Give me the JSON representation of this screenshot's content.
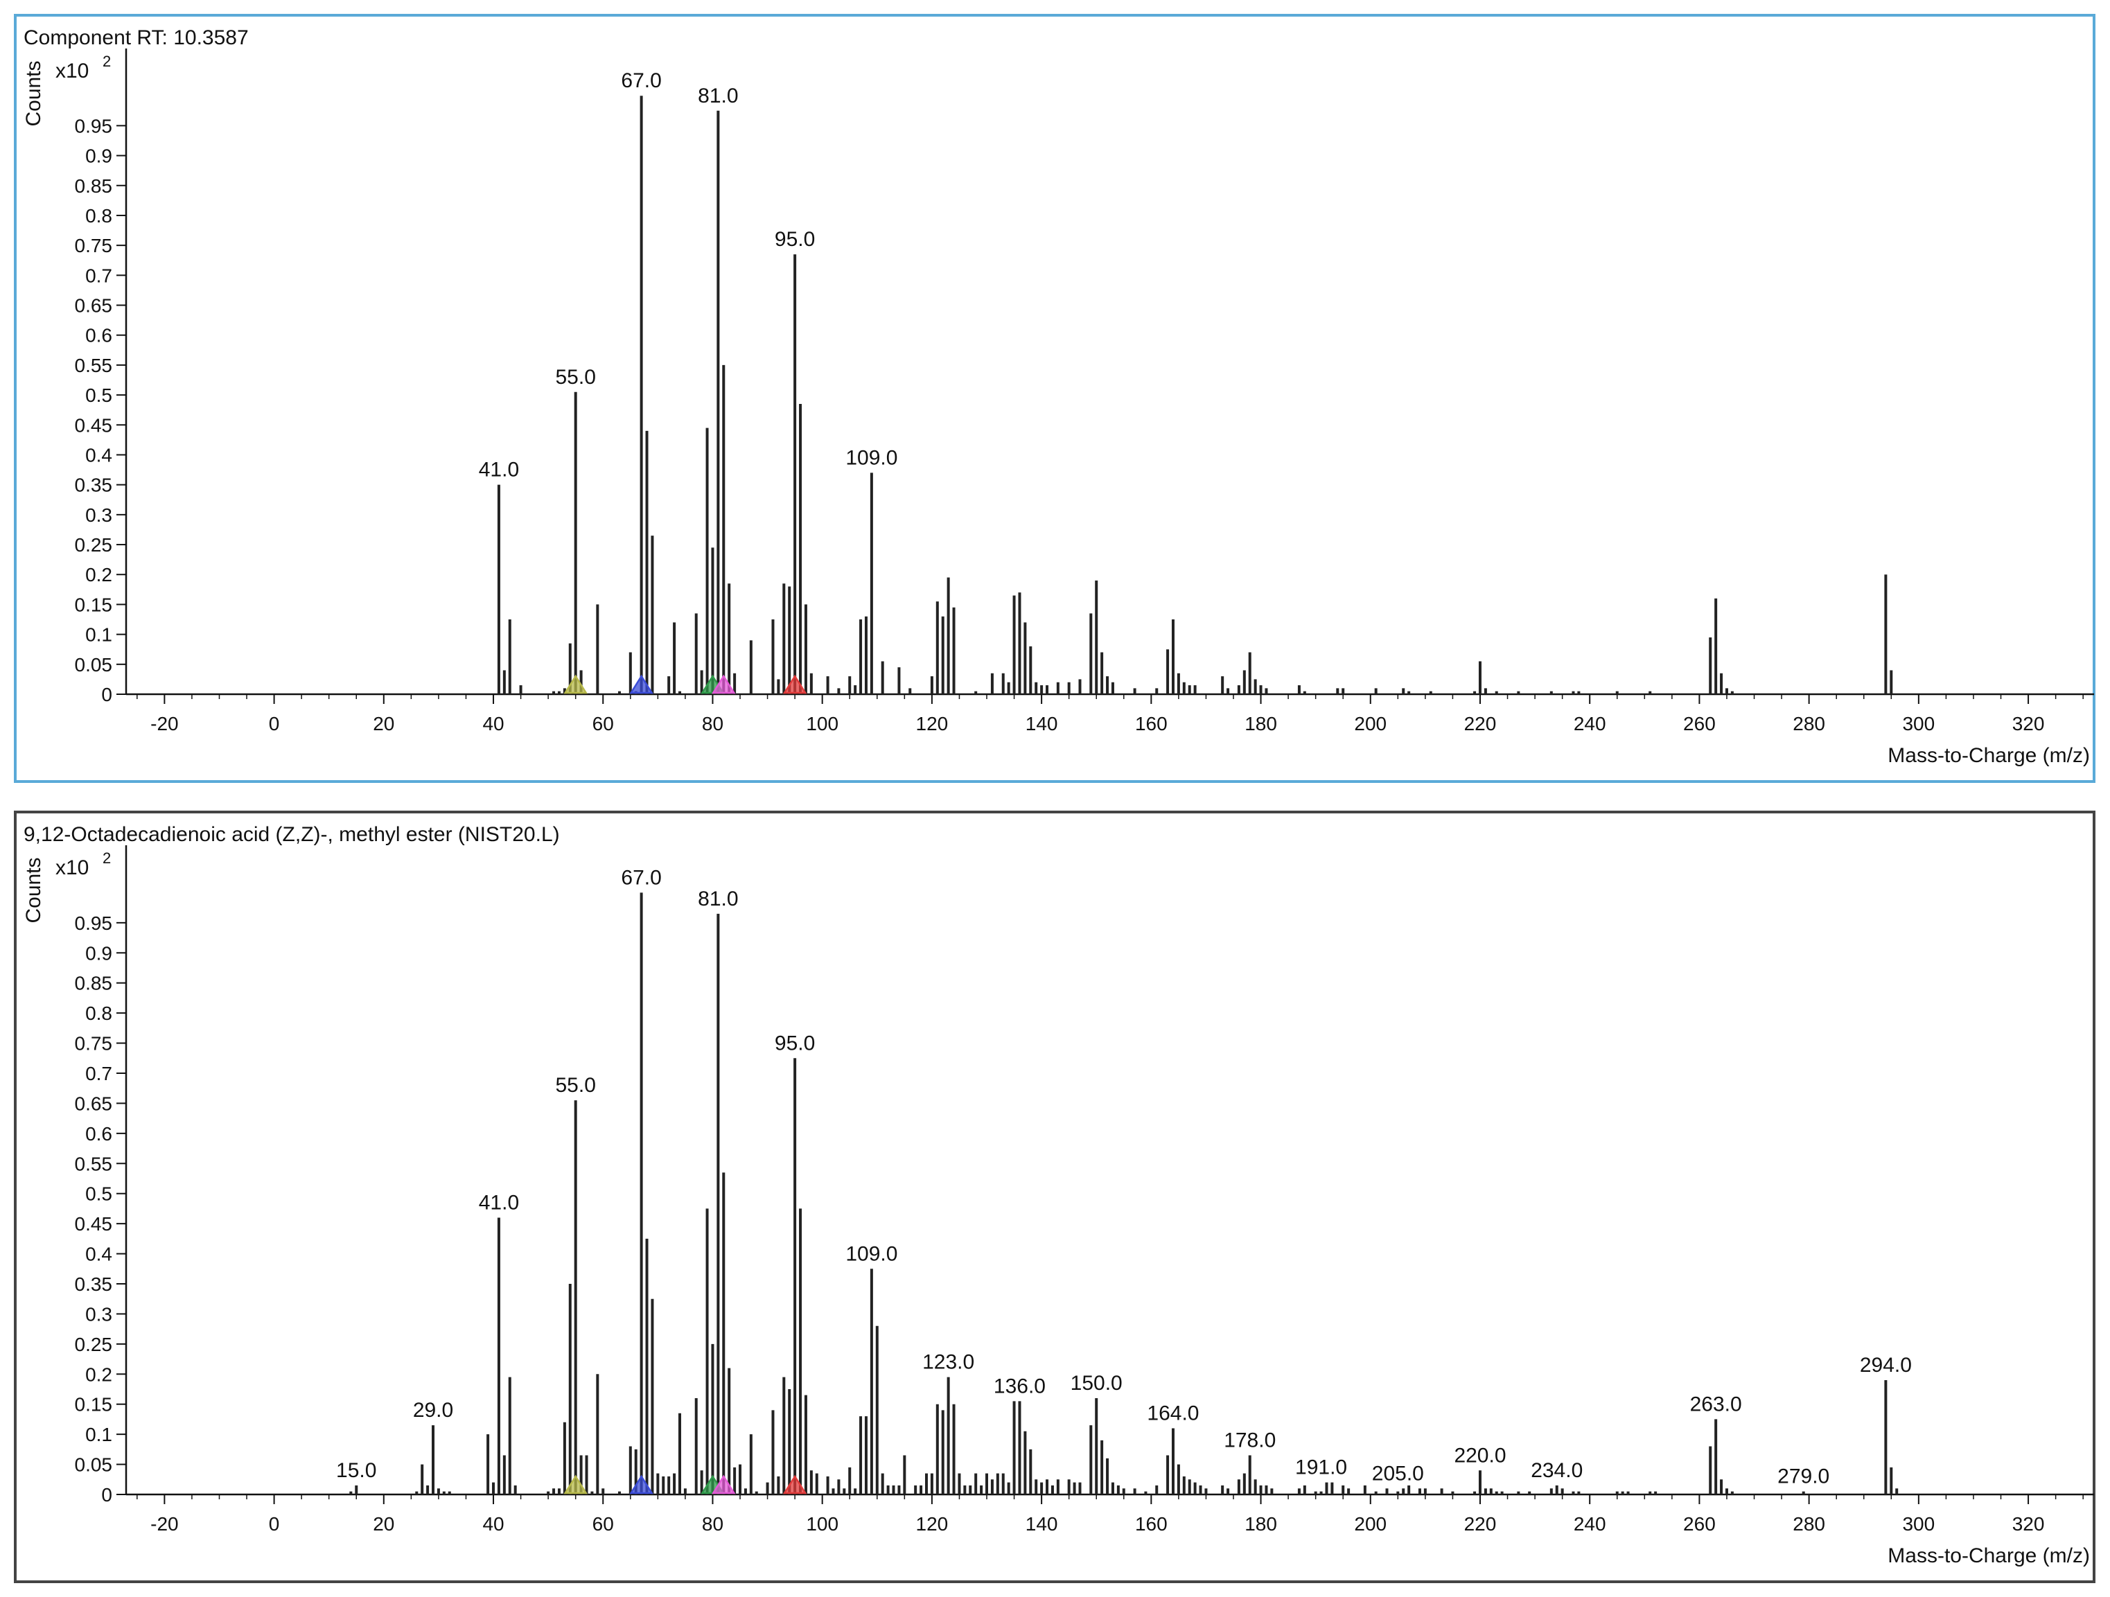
{
  "chart_data": [
    {
      "type": "bar",
      "title": "Component RT: 10.3587",
      "ylabel": "Counts",
      "y_multiplier": "x10",
      "y_multiplier_exp": "2",
      "xlabel": "Mass-to-Charge (m/z)",
      "xlim": [
        -27,
        332
      ],
      "ylim": [
        0,
        1.05
      ],
      "x_ticks": [
        -20,
        0,
        20,
        40,
        60,
        80,
        100,
        120,
        140,
        160,
        180,
        200,
        220,
        240,
        260,
        280,
        300,
        320
      ],
      "y_ticks": [
        0,
        0.05,
        0.1,
        0.15,
        0.2,
        0.25,
        0.3,
        0.35,
        0.4,
        0.45,
        0.5,
        0.55,
        0.6,
        0.65,
        0.7,
        0.75,
        0.8,
        0.85,
        0.9,
        0.95
      ],
      "y_tick_labels": [
        "0",
        "0.05",
        "0.1",
        "0.15",
        "0.2",
        "0.25",
        "0.3",
        "0.35",
        "0.4",
        "0.45",
        "0.5",
        "0.55",
        "0.6",
        "0.65",
        "0.7",
        "0.75",
        "0.8",
        "0.85",
        "0.9",
        "0.95"
      ],
      "frame_color": "#5aaad8",
      "x": [
        41,
        42,
        43,
        45,
        51,
        52,
        53,
        54,
        55,
        56,
        59,
        63,
        65,
        66,
        67,
        68,
        69,
        72,
        73,
        74,
        77,
        78,
        79,
        80,
        81,
        82,
        83,
        84,
        87,
        91,
        92,
        93,
        94,
        95,
        96,
        97,
        98,
        101,
        103,
        105,
        106,
        107,
        108,
        109,
        111,
        114,
        116,
        120,
        121,
        122,
        123,
        124,
        128,
        131,
        133,
        134,
        135,
        136,
        137,
        138,
        139,
        140,
        141,
        143,
        145,
        147,
        149,
        150,
        151,
        152,
        153,
        157,
        161,
        163,
        164,
        165,
        166,
        167,
        168,
        173,
        174,
        176,
        177,
        178,
        179,
        180,
        181,
        187,
        188,
        194,
        195,
        201,
        206,
        207,
        211,
        219,
        220,
        221,
        223,
        227,
        233,
        237,
        238,
        245,
        251,
        262,
        263,
        264,
        265,
        266,
        294,
        295
      ],
      "values": [
        0.35,
        0.04,
        0.125,
        0.015,
        0.005,
        0.005,
        0.01,
        0.085,
        0.505,
        0.04,
        0.15,
        0.005,
        0.07,
        0.005,
        1.0,
        0.44,
        0.265,
        0.03,
        0.12,
        0.005,
        0.135,
        0.04,
        0.445,
        0.245,
        0.975,
        0.55,
        0.185,
        0.035,
        0.09,
        0.125,
        0.025,
        0.185,
        0.18,
        0.735,
        0.485,
        0.15,
        0.035,
        0.03,
        0.01,
        0.03,
        0.015,
        0.125,
        0.13,
        0.37,
        0.055,
        0.045,
        0.01,
        0.03,
        0.155,
        0.13,
        0.195,
        0.145,
        0.005,
        0.035,
        0.035,
        0.02,
        0.165,
        0.17,
        0.12,
        0.08,
        0.02,
        0.015,
        0.015,
        0.02,
        0.02,
        0.025,
        0.135,
        0.19,
        0.07,
        0.03,
        0.02,
        0.01,
        0.01,
        0.075,
        0.125,
        0.035,
        0.02,
        0.015,
        0.015,
        0.03,
        0.01,
        0.015,
        0.04,
        0.07,
        0.025,
        0.015,
        0.01,
        0.015,
        0.005,
        0.01,
        0.01,
        0.01,
        0.01,
        0.005,
        0.005,
        0.005,
        0.055,
        0.01,
        0.005,
        0.005,
        0.005,
        0.005,
        0.005,
        0.005,
        0.005,
        0.095,
        0.16,
        0.035,
        0.01,
        0.005,
        0.2,
        0.04
      ],
      "peak_labels": [
        {
          "x": 41,
          "y": 0.35,
          "label": "41.0"
        },
        {
          "x": 55,
          "y": 0.505,
          "label": "55.0"
        },
        {
          "x": 67,
          "y": 1.0,
          "label": "67.0"
        },
        {
          "x": 81,
          "y": 0.975,
          "label": "81.0"
        },
        {
          "x": 95,
          "y": 0.735,
          "label": "95.0"
        },
        {
          "x": 109,
          "y": 0.37,
          "label": "109.0"
        }
      ],
      "markers": [
        {
          "x": 55,
          "color": "#b7b94a"
        },
        {
          "x": 67,
          "color": "#3b4cd8"
        },
        {
          "x": 80,
          "color": "#2e9a4a"
        },
        {
          "x": 82,
          "color": "#e55ad8"
        },
        {
          "x": 95,
          "color": "#e23a3a"
        }
      ]
    },
    {
      "type": "bar",
      "title": "9,12-Octadecadienoic acid (Z,Z)-, methyl ester (NIST20.L)",
      "ylabel": "Counts",
      "y_multiplier": "x10",
      "y_multiplier_exp": "2",
      "xlabel": "Mass-to-Charge (m/z)",
      "xlim": [
        -27,
        332
      ],
      "ylim": [
        0,
        1.05
      ],
      "x_ticks": [
        -20,
        0,
        20,
        40,
        60,
        80,
        100,
        120,
        140,
        160,
        180,
        200,
        220,
        240,
        260,
        280,
        300,
        320
      ],
      "y_ticks": [
        0,
        0.05,
        0.1,
        0.15,
        0.2,
        0.25,
        0.3,
        0.35,
        0.4,
        0.45,
        0.5,
        0.55,
        0.6,
        0.65,
        0.7,
        0.75,
        0.8,
        0.85,
        0.9,
        0.95
      ],
      "y_tick_labels": [
        "0",
        "0.05",
        "0.1",
        "0.15",
        "0.2",
        "0.25",
        "0.3",
        "0.35",
        "0.4",
        "0.45",
        "0.5",
        "0.55",
        "0.6",
        "0.65",
        "0.7",
        "0.75",
        "0.8",
        "0.85",
        "0.9",
        "0.95"
      ],
      "frame_color": "#444444",
      "x": [
        14,
        15,
        26,
        27,
        28,
        29,
        30,
        31,
        32,
        39,
        40,
        41,
        42,
        43,
        44,
        50,
        51,
        52,
        53,
        54,
        55,
        56,
        57,
        58,
        59,
        60,
        63,
        65,
        66,
        67,
        68,
        69,
        70,
        71,
        72,
        73,
        74,
        75,
        77,
        78,
        79,
        80,
        81,
        82,
        83,
        84,
        85,
        86,
        87,
        88,
        90,
        91,
        92,
        93,
        94,
        95,
        96,
        97,
        98,
        99,
        101,
        102,
        103,
        104,
        105,
        106,
        107,
        108,
        109,
        110,
        111,
        112,
        113,
        114,
        115,
        117,
        118,
        119,
        120,
        121,
        122,
        123,
        124,
        125,
        126,
        127,
        128,
        129,
        130,
        131,
        132,
        133,
        134,
        135,
        136,
        137,
        138,
        139,
        140,
        141,
        142,
        143,
        145,
        146,
        147,
        149,
        150,
        151,
        152,
        153,
        154,
        155,
        157,
        159,
        161,
        163,
        164,
        165,
        166,
        167,
        168,
        169,
        170,
        173,
        174,
        176,
        177,
        178,
        179,
        180,
        181,
        182,
        187,
        188,
        190,
        191,
        192,
        193,
        195,
        196,
        199,
        201,
        203,
        205,
        206,
        207,
        209,
        210,
        213,
        215,
        219,
        220,
        221,
        222,
        223,
        224,
        227,
        229,
        233,
        234,
        235,
        237,
        238,
        245,
        246,
        247,
        251,
        252,
        262,
        263,
        264,
        265,
        266,
        279,
        294,
        295,
        296
      ],
      "values": [
        0.005,
        0.015,
        0.005,
        0.05,
        0.015,
        0.115,
        0.01,
        0.005,
        0.005,
        0.1,
        0.02,
        0.46,
        0.065,
        0.195,
        0.015,
        0.005,
        0.01,
        0.01,
        0.12,
        0.35,
        0.655,
        0.065,
        0.065,
        0.005,
        0.2,
        0.01,
        0.005,
        0.08,
        0.075,
        1.0,
        0.425,
        0.325,
        0.035,
        0.03,
        0.03,
        0.035,
        0.135,
        0.01,
        0.16,
        0.04,
        0.475,
        0.25,
        0.965,
        0.535,
        0.21,
        0.045,
        0.05,
        0.01,
        0.1,
        0.005,
        0.02,
        0.14,
        0.03,
        0.195,
        0.175,
        0.725,
        0.475,
        0.165,
        0.04,
        0.035,
        0.03,
        0.01,
        0.025,
        0.01,
        0.045,
        0.01,
        0.13,
        0.13,
        0.375,
        0.28,
        0.035,
        0.015,
        0.015,
        0.015,
        0.065,
        0.015,
        0.015,
        0.035,
        0.035,
        0.15,
        0.14,
        0.195,
        0.15,
        0.035,
        0.015,
        0.015,
        0.035,
        0.015,
        0.035,
        0.025,
        0.035,
        0.035,
        0.02,
        0.155,
        0.155,
        0.105,
        0.075,
        0.025,
        0.02,
        0.025,
        0.015,
        0.025,
        0.025,
        0.02,
        0.02,
        0.115,
        0.16,
        0.09,
        0.06,
        0.02,
        0.015,
        0.01,
        0.01,
        0.005,
        0.015,
        0.065,
        0.11,
        0.05,
        0.03,
        0.025,
        0.02,
        0.015,
        0.01,
        0.015,
        0.01,
        0.025,
        0.035,
        0.065,
        0.025,
        0.015,
        0.015,
        0.01,
        0.01,
        0.015,
        0.005,
        0.005,
        0.02,
        0.02,
        0.015,
        0.01,
        0.015,
        0.005,
        0.01,
        0.005,
        0.01,
        0.015,
        0.01,
        0.01,
        0.01,
        0.005,
        0.005,
        0.04,
        0.01,
        0.01,
        0.005,
        0.005,
        0.005,
        0.005,
        0.01,
        0.015,
        0.01,
        0.005,
        0.005,
        0.005,
        0.005,
        0.005,
        0.005,
        0.005,
        0.08,
        0.125,
        0.025,
        0.01,
        0.005,
        0.005,
        0.19,
        0.045,
        0.01
      ],
      "peak_labels": [
        {
          "x": 15,
          "y": 0.015,
          "label": "15.0"
        },
        {
          "x": 29,
          "y": 0.115,
          "label": "29.0"
        },
        {
          "x": 41,
          "y": 0.46,
          "label": "41.0"
        },
        {
          "x": 55,
          "y": 0.655,
          "label": "55.0"
        },
        {
          "x": 67,
          "y": 1.0,
          "label": "67.0"
        },
        {
          "x": 81,
          "y": 0.965,
          "label": "81.0"
        },
        {
          "x": 95,
          "y": 0.725,
          "label": "95.0"
        },
        {
          "x": 109,
          "y": 0.375,
          "label": "109.0"
        },
        {
          "x": 123,
          "y": 0.195,
          "label": "123.0"
        },
        {
          "x": 136,
          "y": 0.155,
          "label": "136.0"
        },
        {
          "x": 150,
          "y": 0.16,
          "label": "150.0"
        },
        {
          "x": 164,
          "y": 0.11,
          "label": "164.0"
        },
        {
          "x": 178,
          "y": 0.065,
          "label": "178.0"
        },
        {
          "x": 191,
          "y": 0.02,
          "label": "191.0"
        },
        {
          "x": 205,
          "y": 0.01,
          "label": "205.0"
        },
        {
          "x": 220,
          "y": 0.04,
          "label": "220.0"
        },
        {
          "x": 234,
          "y": 0.015,
          "label": "234.0"
        },
        {
          "x": 263,
          "y": 0.125,
          "label": "263.0"
        },
        {
          "x": 279,
          "y": 0.005,
          "label": "279.0"
        },
        {
          "x": 294,
          "y": 0.19,
          "label": "294.0"
        }
      ],
      "markers": [
        {
          "x": 55,
          "color": "#b7b94a"
        },
        {
          "x": 67,
          "color": "#3b4cd8"
        },
        {
          "x": 80,
          "color": "#2e9a4a"
        },
        {
          "x": 82,
          "color": "#e55ad8"
        },
        {
          "x": 95,
          "color": "#e23a3a"
        }
      ]
    }
  ]
}
